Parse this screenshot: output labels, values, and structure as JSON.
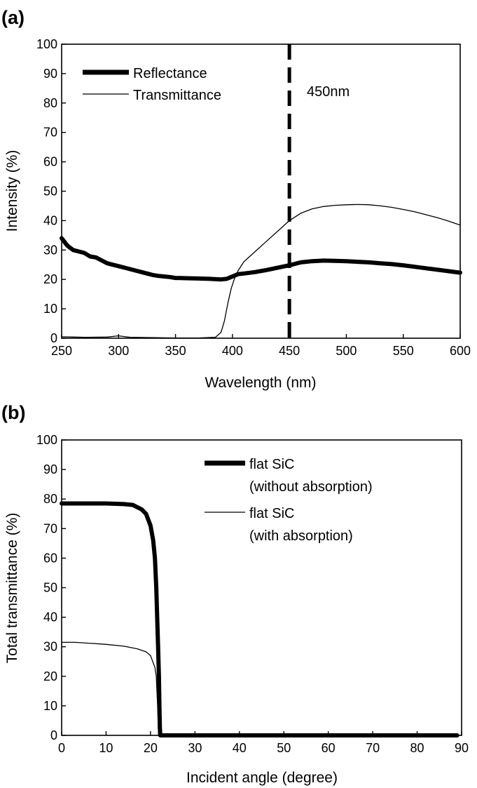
{
  "chart_data": [
    {
      "type": "line",
      "panel_label": "(a)",
      "xlabel": "Wavelength (nm)",
      "ylabel": "Intensity (%)",
      "xlim": [
        250,
        600
      ],
      "ylim": [
        0,
        100
      ],
      "x_ticks": [
        250,
        300,
        350,
        400,
        450,
        500,
        550,
        600
      ],
      "y_ticks": [
        0,
        10,
        20,
        30,
        40,
        50,
        60,
        70,
        80,
        90,
        100
      ],
      "legend_position": "top-left",
      "grid": false,
      "series": [
        {
          "name": "Reflectance",
          "style": "thick",
          "points": [
            [
              250,
              34
            ],
            [
              255,
              31.5
            ],
            [
              260,
              30
            ],
            [
              265,
              29.5
            ],
            [
              270,
              29
            ],
            [
              275,
              27.8
            ],
            [
              280,
              27.5
            ],
            [
              285,
              26.5
            ],
            [
              290,
              25.5
            ],
            [
              295,
              25
            ],
            [
              300,
              24.5
            ],
            [
              305,
              24
            ],
            [
              310,
              23.5
            ],
            [
              315,
              23
            ],
            [
              320,
              22.5
            ],
            [
              325,
              22
            ],
            [
              330,
              21.5
            ],
            [
              335,
              21.2
            ],
            [
              340,
              21
            ],
            [
              345,
              20.8
            ],
            [
              350,
              20.5
            ],
            [
              360,
              20.4
            ],
            [
              370,
              20.3
            ],
            [
              380,
              20.2
            ],
            [
              390,
              20
            ],
            [
              395,
              20.2
            ],
            [
              400,
              21
            ],
            [
              405,
              21.8
            ],
            [
              410,
              22
            ],
            [
              420,
              22.5
            ],
            [
              430,
              23.2
            ],
            [
              440,
              24
            ],
            [
              450,
              24.8
            ],
            [
              460,
              25.8
            ],
            [
              470,
              26.2
            ],
            [
              480,
              26.4
            ],
            [
              490,
              26.3
            ],
            [
              500,
              26.2
            ],
            [
              510,
              26
            ],
            [
              520,
              25.8
            ],
            [
              530,
              25.5
            ],
            [
              540,
              25.2
            ],
            [
              550,
              24.8
            ],
            [
              560,
              24.3
            ],
            [
              570,
              23.8
            ],
            [
              580,
              23.3
            ],
            [
              590,
              22.8
            ],
            [
              600,
              22.3
            ]
          ]
        },
        {
          "name": "Transmittance",
          "style": "thin",
          "points": [
            [
              250,
              0.5
            ],
            [
              270,
              0.3
            ],
            [
              290,
              0.4
            ],
            [
              300,
              0.8
            ],
            [
              310,
              0.3
            ],
            [
              330,
              0.2
            ],
            [
              350,
              0.1
            ],
            [
              370,
              0.1
            ],
            [
              385,
              0.3
            ],
            [
              390,
              2
            ],
            [
              393,
              6
            ],
            [
              396,
              12
            ],
            [
              399,
              17
            ],
            [
              402,
              20.5
            ],
            [
              405,
              23
            ],
            [
              410,
              26
            ],
            [
              420,
              29.5
            ],
            [
              430,
              33
            ],
            [
              440,
              36.5
            ],
            [
              450,
              40
            ],
            [
              460,
              42.5
            ],
            [
              470,
              44
            ],
            [
              480,
              44.8
            ],
            [
              490,
              45.2
            ],
            [
              500,
              45.4
            ],
            [
              510,
              45.5
            ],
            [
              520,
              45.4
            ],
            [
              530,
              45
            ],
            [
              540,
              44.5
            ],
            [
              550,
              43.8
            ],
            [
              560,
              43
            ],
            [
              570,
              42
            ],
            [
              580,
              41
            ],
            [
              590,
              39.8
            ],
            [
              600,
              38.5
            ]
          ]
        }
      ],
      "annotations": [
        {
          "type": "vline",
          "x": 450,
          "style": "dashed"
        },
        {
          "type": "text",
          "text": "450nm",
          "x": 453,
          "y": 84
        }
      ]
    },
    {
      "type": "line",
      "panel_label": "(b)",
      "xlabel": "Incident angle (degree)",
      "ylabel": "Total transmittance (%)",
      "xlim": [
        0,
        90
      ],
      "ylim": [
        0,
        100
      ],
      "x_ticks": [
        0,
        10,
        20,
        30,
        40,
        50,
        60,
        70,
        80,
        90
      ],
      "y_ticks": [
        0,
        10,
        20,
        30,
        40,
        50,
        60,
        70,
        80,
        90,
        100
      ],
      "legend_position": "top-right",
      "grid": false,
      "series": [
        {
          "name": "flat SiC",
          "name_line2": "(without absorption)",
          "style": "thick",
          "points": [
            [
              0,
              78.5
            ],
            [
              5,
              78.5
            ],
            [
              10,
              78.5
            ],
            [
              14,
              78.3
            ],
            [
              16,
              78
            ],
            [
              18,
              76.5
            ],
            [
              19,
              75
            ],
            [
              20,
              71
            ],
            [
              20.6,
              66
            ],
            [
              21,
              60
            ],
            [
              21.3,
              50
            ],
            [
              21.5,
              40
            ],
            [
              21.7,
              30
            ],
            [
              21.9,
              20
            ],
            [
              22,
              10
            ],
            [
              22.1,
              3
            ],
            [
              22.2,
              0
            ],
            [
              25,
              0
            ],
            [
              30,
              0
            ],
            [
              40,
              0
            ],
            [
              50,
              0
            ],
            [
              60,
              0
            ],
            [
              70,
              0
            ],
            [
              80,
              0
            ],
            [
              89,
              0
            ]
          ]
        },
        {
          "name": "flat SiC",
          "name_line2": "(with absorption)",
          "style": "thin",
          "points": [
            [
              0,
              31.5
            ],
            [
              3,
              31.5
            ],
            [
              6,
              31.2
            ],
            [
              10,
              30.8
            ],
            [
              14,
              30.2
            ],
            [
              17,
              29.3
            ],
            [
              19,
              28.3
            ],
            [
              20,
              27
            ],
            [
              21,
              23
            ],
            [
              21.3,
              20
            ],
            [
              21.6,
              10
            ],
            [
              21.8,
              0
            ],
            [
              25,
              0
            ],
            [
              30,
              0
            ],
            [
              40,
              0
            ],
            [
              50,
              0
            ],
            [
              60,
              0
            ],
            [
              70,
              0
            ],
            [
              80,
              0
            ],
            [
              89,
              0
            ]
          ]
        }
      ]
    }
  ]
}
